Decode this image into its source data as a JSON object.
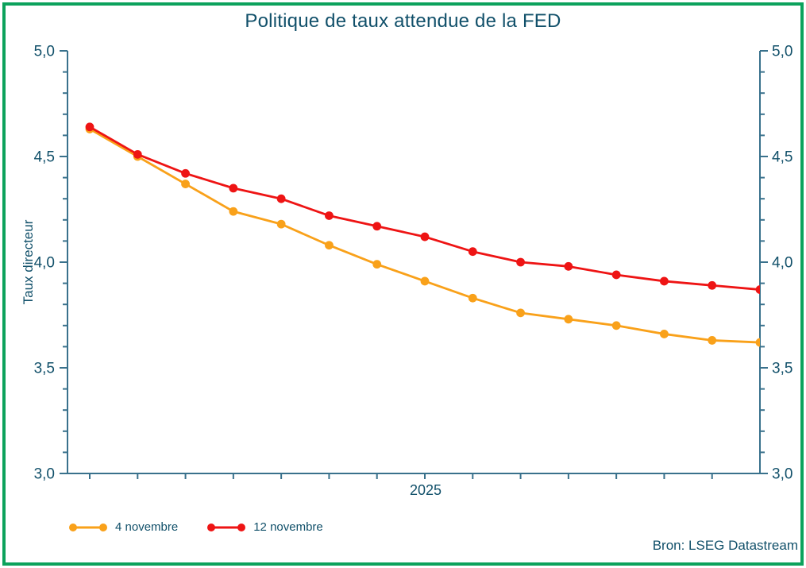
{
  "title": "Politique de taux attendue de la FED",
  "source_note": "Bron: LSEG Datastream",
  "colors": {
    "frame_border": "#0ca25c",
    "text_teal": "#11506a",
    "axis_line": "#39718c",
    "series_orange": "#f9a11a",
    "series_red": "#ee1414"
  },
  "chart_data": {
    "type": "line",
    "title": "Politique de taux attendue de la FED",
    "ylabel": "Taux directeur",
    "xlabel": "2025",
    "ylim": [
      3.0,
      5.0
    ],
    "y_major_ticks": [
      5.0,
      4.5,
      4.0,
      3.5,
      3.0
    ],
    "y_tick_labels": [
      "5,0",
      "4,5",
      "4,0",
      "3,5",
      "3,0"
    ],
    "y_minor_step": 0.1,
    "dual_y_axis": true,
    "grid": false,
    "x_tick_count": 14,
    "legend_position": "bottom-left",
    "series": [
      {
        "name": "4 novembre",
        "color": "#f9a11a",
        "values": [
          4.63,
          4.5,
          4.37,
          4.24,
          4.18,
          4.08,
          3.99,
          3.91,
          3.83,
          3.76,
          3.73,
          3.7,
          3.66,
          3.63,
          3.62
        ]
      },
      {
        "name": "12 novembre",
        "color": "#ee1414",
        "values": [
          4.64,
          4.51,
          4.42,
          4.35,
          4.3,
          4.22,
          4.17,
          4.12,
          4.05,
          4.0,
          3.98,
          3.94,
          3.91,
          3.89,
          3.87
        ]
      }
    ]
  }
}
